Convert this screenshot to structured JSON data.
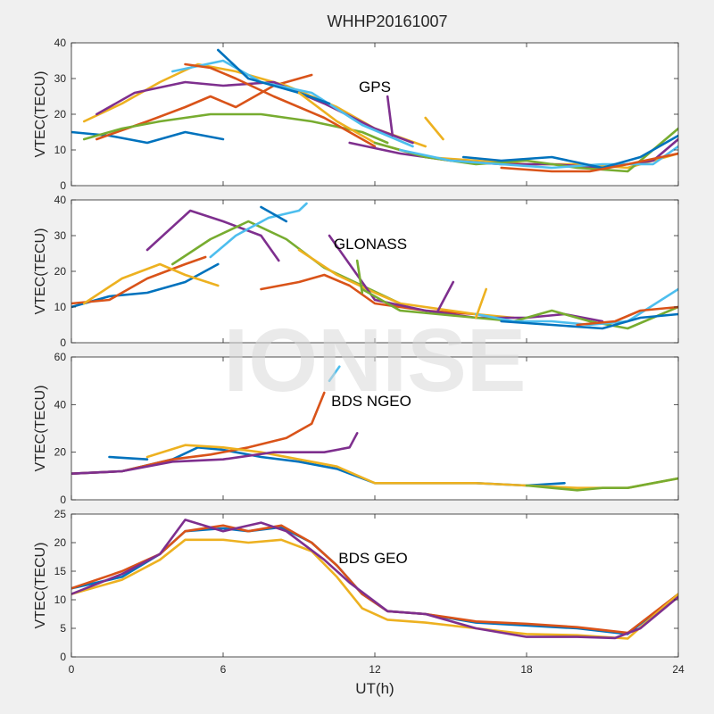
{
  "chart_data": {
    "type": "line",
    "title": "WHHP20161007",
    "xlabel": "UT(h)",
    "xlim": [
      0,
      24
    ],
    "xticks": [
      0,
      6,
      12,
      18,
      24
    ],
    "watermark": "IONISE",
    "colors": [
      "#0072bd",
      "#d95319",
      "#edb120",
      "#7e2f8e",
      "#77ac30",
      "#4dbeee"
    ],
    "panels": [
      {
        "label": "GPS",
        "ylabel": "VTEC(TECU)",
        "ylim": [
          0,
          40
        ],
        "yticks": [
          0,
          10,
          20,
          30,
          40
        ],
        "series": [
          {
            "x": [
              0,
              1.5,
              3,
              4.5,
              6
            ],
            "y": [
              15,
              14,
              12,
              15,
              13
            ]
          },
          {
            "x": [
              1,
              3,
              4.5,
              5.5,
              6.5,
              8,
              9.5
            ],
            "y": [
              13,
              18,
              22,
              25,
              22,
              28,
              31
            ]
          },
          {
            "x": [
              0.5,
              2,
              3.5,
              5,
              6.5,
              8.5,
              10.5,
              12,
              14
            ],
            "y": [
              18,
              23,
              29,
              34,
              32,
              28,
              22,
              16,
              11
            ]
          },
          {
            "x": [
              1,
              2.5,
              4.5,
              6,
              8,
              10,
              12,
              13.5
            ],
            "y": [
              20,
              26,
              29,
              28,
              29,
              23,
              16,
              12
            ]
          },
          {
            "x": [
              0.5,
              2,
              3.5,
              5.5,
              7.5,
              9.5,
              11.5,
              12.5
            ],
            "y": [
              13,
              16,
              18,
              20,
              20,
              18,
              15,
              12
            ]
          },
          {
            "x": [
              4,
              6,
              7.5,
              9.5,
              11.5,
              13.5
            ],
            "y": [
              32,
              35,
              29,
              26,
              17,
              11
            ]
          },
          {
            "x": [
              5.8,
              7,
              9,
              10.2
            ],
            "y": [
              38,
              30,
              26,
              23
            ]
          },
          {
            "x": [
              4.5,
              5.5,
              6.5,
              8,
              10,
              12
            ],
            "y": [
              34,
              33,
              30,
              25,
              19,
              11
            ]
          },
          {
            "x": [
              9,
              10.5,
              12,
              14,
              16,
              18,
              20,
              22,
              24
            ],
            "y": [
              26,
              18,
              12,
              8,
              7,
              6,
              6,
              5,
              9
            ]
          },
          {
            "x": [
              11,
              13,
              15,
              17,
              19,
              21,
              23,
              24
            ],
            "y": [
              12,
              9,
              7,
              6,
              6,
              5,
              7,
              13
            ]
          },
          {
            "x": [
              12,
              14,
              16,
              18,
              20,
              22,
              24
            ],
            "y": [
              12,
              8,
              6,
              7,
              5,
              4,
              16
            ]
          },
          {
            "x": [
              13,
              15,
              17,
              19,
              21,
              23,
              24
            ],
            "y": [
              10,
              7,
              6,
              5,
              6,
              6,
              11
            ]
          },
          {
            "x": [
              15.5,
              17,
              19,
              21,
              22.5,
              24
            ],
            "y": [
              8,
              7,
              8,
              5,
              8,
              14
            ]
          },
          {
            "x": [
              17,
              19,
              20.5,
              22,
              24
            ],
            "y": [
              5,
              4,
              4,
              6,
              9
            ]
          },
          {
            "x": [
              14,
              14.7
            ],
            "y": [
              19,
              13
            ]
          },
          {
            "x": [
              12.5,
              12.7
            ],
            "y": [
              25,
              14
            ]
          }
        ]
      },
      {
        "label": "GLONASS",
        "ylabel": "VTEC(TECU)",
        "ylim": [
          0,
          40
        ],
        "yticks": [
          0,
          10,
          20,
          30,
          40
        ],
        "series": [
          {
            "x": [
              0,
              1.5,
              3,
              4.5,
              5.8
            ],
            "y": [
              10,
              13,
              14,
              17,
              22
            ]
          },
          {
            "x": [
              0,
              1.5,
              3,
              4.5,
              5.3
            ],
            "y": [
              11,
              12,
              18,
              22,
              24
            ]
          },
          {
            "x": [
              0.5,
              2,
              3.5,
              4.5,
              5.8
            ],
            "y": [
              11,
              18,
              22,
              19,
              16
            ]
          },
          {
            "x": [
              3,
              4.7,
              6,
              7.5,
              8.2
            ],
            "y": [
              26,
              37,
              34,
              30,
              23
            ]
          },
          {
            "x": [
              4,
              5.5,
              7,
              8.5,
              10,
              11.5,
              13
            ],
            "y": [
              22,
              29,
              34,
              29,
              21,
              16,
              11
            ]
          },
          {
            "x": [
              5.5,
              6.5,
              7.8,
              9,
              9.3
            ],
            "y": [
              24,
              30,
              35,
              37,
              39
            ]
          },
          {
            "x": [
              7.5,
              8,
              8.5
            ],
            "y": [
              38,
              36,
              34
            ]
          },
          {
            "x": [
              7.5,
              9,
              10,
              11,
              12,
              14,
              16
            ],
            "y": [
              15,
              17,
              19,
              16,
              11,
              9,
              8
            ]
          },
          {
            "x": [
              9,
              10.5,
              12,
              13,
              14,
              16,
              17.5
            ],
            "y": [
              26,
              19,
              14,
              11,
              10,
              8,
              7
            ]
          },
          {
            "x": [
              10.2,
              12,
              14,
              16,
              18,
              19.5,
              21
            ],
            "y": [
              30,
              12,
              9,
              7,
              7,
              8,
              6
            ]
          },
          {
            "x": [
              11.5,
              13,
              14.5,
              16,
              17.5,
              19,
              20.5,
              22,
              24
            ],
            "y": [
              15,
              9,
              8,
              7,
              6,
              9,
              6,
              4,
              10
            ]
          },
          {
            "x": [
              16,
              17.5,
              19,
              20.5,
              22,
              24
            ],
            "y": [
              8,
              6,
              6,
              5,
              6,
              15
            ]
          },
          {
            "x": [
              17,
              19,
              21,
              22.5,
              24
            ],
            "y": [
              6,
              5,
              4,
              7,
              8
            ]
          },
          {
            "x": [
              20,
              21.5,
              22.5,
              24
            ],
            "y": [
              5,
              6,
              9,
              10
            ]
          },
          {
            "x": [
              16,
              16.4
            ],
            "y": [
              7,
              15
            ]
          },
          {
            "x": [
              14.5,
              15.1
            ],
            "y": [
              9,
              17
            ]
          },
          {
            "x": [
              11.3,
              11.5
            ],
            "y": [
              23,
              14
            ]
          }
        ]
      },
      {
        "label": "BDS NGEO",
        "ylabel": "VTEC(TECU)",
        "ylim": [
          0,
          60
        ],
        "yticks": [
          0,
          20,
          40,
          60
        ],
        "series": [
          {
            "x": [
              0,
              2,
              4,
              5,
              6,
              7.5,
              9,
              10.5,
              12,
              14,
              16,
              18,
              19.5
            ],
            "y": [
              11,
              12,
              17,
              22,
              21,
              18,
              16,
              13,
              7,
              7,
              7,
              6,
              7
            ]
          },
          {
            "x": [
              0,
              2,
              4,
              5.5,
              7,
              8.5,
              9.5,
              10
            ],
            "y": [
              11,
              12,
              17,
              19,
              22,
              26,
              32,
              45
            ]
          },
          {
            "x": [
              3,
              4.5,
              6,
              7.5,
              9,
              10.5,
              12,
              14,
              16,
              18,
              20,
              22,
              24
            ],
            "y": [
              18,
              23,
              22,
              20,
              17,
              14,
              7,
              7,
              7,
              6,
              5,
              5,
              9
            ]
          },
          {
            "x": [
              0,
              2,
              4,
              6,
              8,
              10,
              11,
              11.3
            ],
            "y": [
              11,
              12,
              16,
              17,
              20,
              20,
              22,
              28
            ]
          },
          {
            "x": [
              18,
              19,
              20,
              21,
              22,
              23,
              24
            ],
            "y": [
              6,
              5,
              4,
              5,
              5,
              7,
              9
            ]
          },
          {
            "x": [
              10.2,
              10.6
            ],
            "y": [
              50,
              56
            ]
          },
          {
            "x": [
              1.5,
              3
            ],
            "y": [
              18,
              17
            ]
          }
        ]
      },
      {
        "label": "BDS GEO",
        "ylabel": "VTEC(TECU)",
        "ylim": [
          0,
          25
        ],
        "yticks": [
          0,
          5,
          10,
          15,
          20,
          25
        ],
        "series": [
          {
            "x": [
              0,
              2,
              3.5,
              4.5,
              6,
              7,
              8.3,
              9.5,
              10.5,
              11.5,
              12.5,
              14,
              16,
              18,
              20,
              22,
              24
            ],
            "y": [
              12,
              14,
              18,
              22,
              22.5,
              22,
              22.7,
              20,
              16,
              11,
              8,
              7.5,
              6,
              5.5,
              5,
              4,
              11
            ]
          },
          {
            "x": [
              0,
              2,
              3.5,
              4.5,
              6,
              7,
              8.3,
              9.5,
              10.5,
              11.5,
              12.5,
              14,
              16,
              18,
              20,
              22,
              24
            ],
            "y": [
              12,
              15,
              18,
              22,
              23,
              22,
              23,
              20,
              16,
              11,
              8,
              7.5,
              6.2,
              5.8,
              5.2,
              4.2,
              11
            ]
          },
          {
            "x": [
              0,
              2,
              3.5,
              4.5,
              6,
              7,
              8.3,
              9.5,
              10.5,
              11.5,
              12.5,
              14,
              16,
              18,
              20,
              22,
              24
            ],
            "y": [
              11,
              13.5,
              17,
              20.5,
              20.5,
              20,
              20.5,
              18.5,
              14,
              8.5,
              6.5,
              6,
              5,
              4,
              3.8,
              3.2,
              11
            ]
          },
          {
            "x": [
              0,
              2,
              3.5,
              4.5,
              6,
              7.5,
              8.5,
              10,
              11,
              12.5,
              14,
              16,
              18,
              20,
              21.5,
              22.5,
              24
            ],
            "y": [
              11,
              14.5,
              18,
              24,
              22,
              23.5,
              22,
              17,
              13,
              8,
              7.5,
              5,
              3.5,
              3.5,
              3.3,
              5,
              10.5
            ]
          }
        ]
      }
    ]
  }
}
